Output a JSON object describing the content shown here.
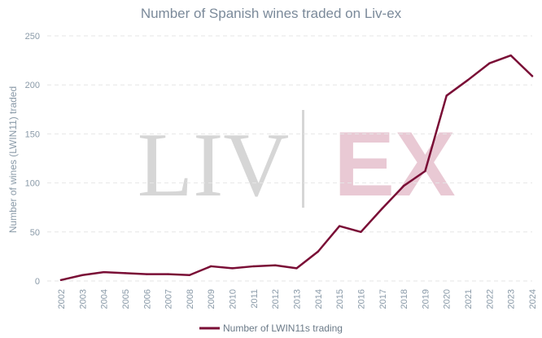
{
  "chart_data": {
    "type": "line",
    "title": "Number of Spanish wines traded on Liv-ex",
    "xlabel": "",
    "ylabel": "Number of wines (LWIN11) traded",
    "ylim": [
      0,
      250
    ],
    "yticks": [
      0,
      50,
      100,
      150,
      200,
      250
    ],
    "grid": true,
    "legend_position": "bottom-center",
    "categories": [
      "2002",
      "2003",
      "2004",
      "2005",
      "2006",
      "2007",
      "2008",
      "2009",
      "2010",
      "2011",
      "2012",
      "2013",
      "2014",
      "2015",
      "2016",
      "2017",
      "2018",
      "2019",
      "2020",
      "2021",
      "2022",
      "2023",
      "2024"
    ],
    "series": [
      {
        "name": "Number of LWIN11s trading",
        "color": "#7a0e36",
        "values": [
          1,
          6,
          9,
          8,
          7,
          7,
          6,
          15,
          13,
          15,
          16,
          13,
          30,
          56,
          50,
          74,
          97,
          112,
          189,
          205,
          222,
          230,
          209
        ]
      }
    ]
  },
  "watermark": {
    "left": "LIV",
    "right": "EX"
  }
}
